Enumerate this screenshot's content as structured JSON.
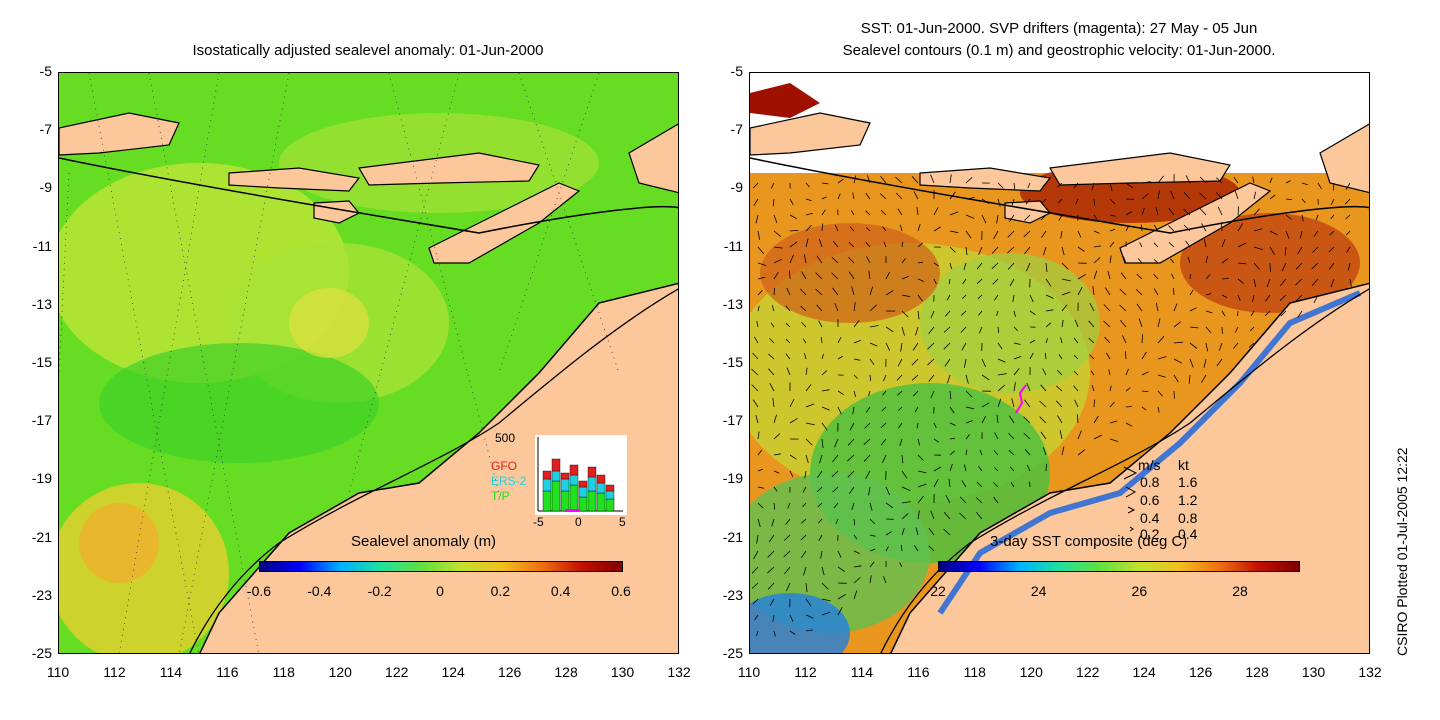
{
  "left_panel": {
    "title": "Isostatically adjusted sealevel anomaly: 01-Jun-2000",
    "colorbar_label": "Sealevel anomaly (m)",
    "colorbar_ticks": [
      "-0.6",
      "-0.4",
      "-0.2",
      "0",
      "0.2",
      "0.4",
      "0.6"
    ],
    "histogram": {
      "ymax_label": "500",
      "series": [
        "GFO",
        "ERS-2",
        "T/P"
      ],
      "series_colors": [
        "#e02020",
        "#20d0e0",
        "#20e020"
      ],
      "x_ticks": [
        "-5",
        "0",
        "5"
      ]
    }
  },
  "right_panel": {
    "title_line1": "SST: 01-Jun-2000. SVP drifters (magenta): 27 May - 05 Jun",
    "title_line2": "Sealevel contours (0.1 m) and geostrophic velocity: 01-Jun-2000.",
    "colorbar_label": "3-day SST composite (deg C)",
    "colorbar_ticks": [
      "22",
      "24",
      "26",
      "28"
    ],
    "legend": {
      "header_ms": "m/s",
      "header_kt": "kt",
      "rows": [
        {
          "ms": "0.8",
          "kt": "1.6"
        },
        {
          "ms": "0.6",
          "kt": "1.2"
        },
        {
          "ms": "0.4",
          "kt": "0.8"
        },
        {
          "ms": "0.2",
          "kt": "0.4"
        }
      ]
    }
  },
  "axes": {
    "lat_ticks": [
      "-5",
      "-7",
      "-9",
      "-11",
      "-13",
      "-15",
      "-17",
      "-19",
      "-21",
      "-23",
      "-25"
    ],
    "lon_ticks": [
      "110",
      "112",
      "114",
      "116",
      "118",
      "120",
      "122",
      "124",
      "126",
      "128",
      "130",
      "132"
    ]
  },
  "credit": "CSIRO Plotted 01-Jul-2005 12:22",
  "colors": {
    "land": "#fcc89b",
    "slaBase": "#66dd22",
    "sstBase": "#e87a1a"
  }
}
